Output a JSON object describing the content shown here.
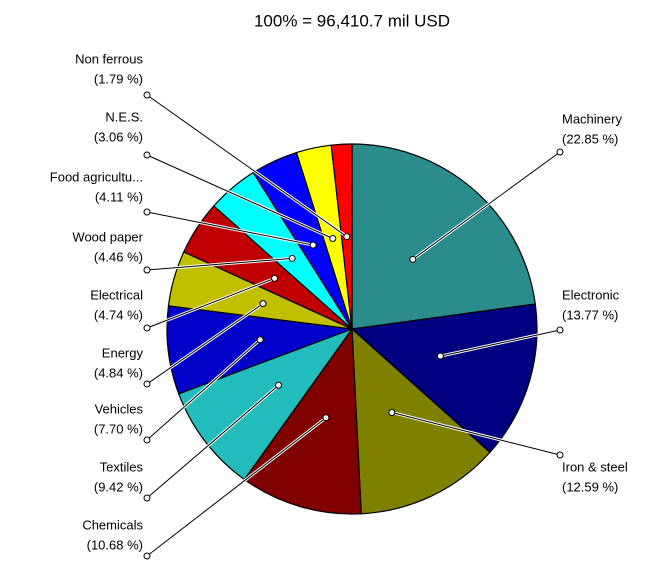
{
  "chart_data": {
    "type": "pie",
    "title": "100% = 96,410.7 mil USD",
    "categories": [
      "Machinery",
      "Electronic",
      "Iron & steel",
      "Chemicals",
      "Textiles",
      "Vehicles",
      "Energy",
      "Electrical",
      "Wood paper",
      "Food agricultu...",
      "N.E.S.",
      "Non ferrous"
    ],
    "values": [
      22.85,
      13.77,
      12.59,
      10.68,
      9.42,
      7.7,
      4.84,
      4.74,
      4.46,
      4.11,
      3.06,
      1.79
    ],
    "value_labels": [
      "(22.85 %)",
      "(13.77 %)",
      "(12.59 %)",
      "(10.68 %)",
      "(9.42 %)",
      "(7.70 %)",
      "(4.84 %)",
      "(4.74 %)",
      "(4.46 %)",
      "(4.11 %)",
      "(3.06 %)",
      "(1.79 %)"
    ],
    "colors": [
      "#2b8c8c",
      "#000080",
      "#808000",
      "#800000",
      "#22bcbc",
      "#0000c8",
      "#c0c000",
      "#c00000",
      "#00ffff",
      "#0000ff",
      "#ffff00",
      "#ff0000"
    ]
  }
}
